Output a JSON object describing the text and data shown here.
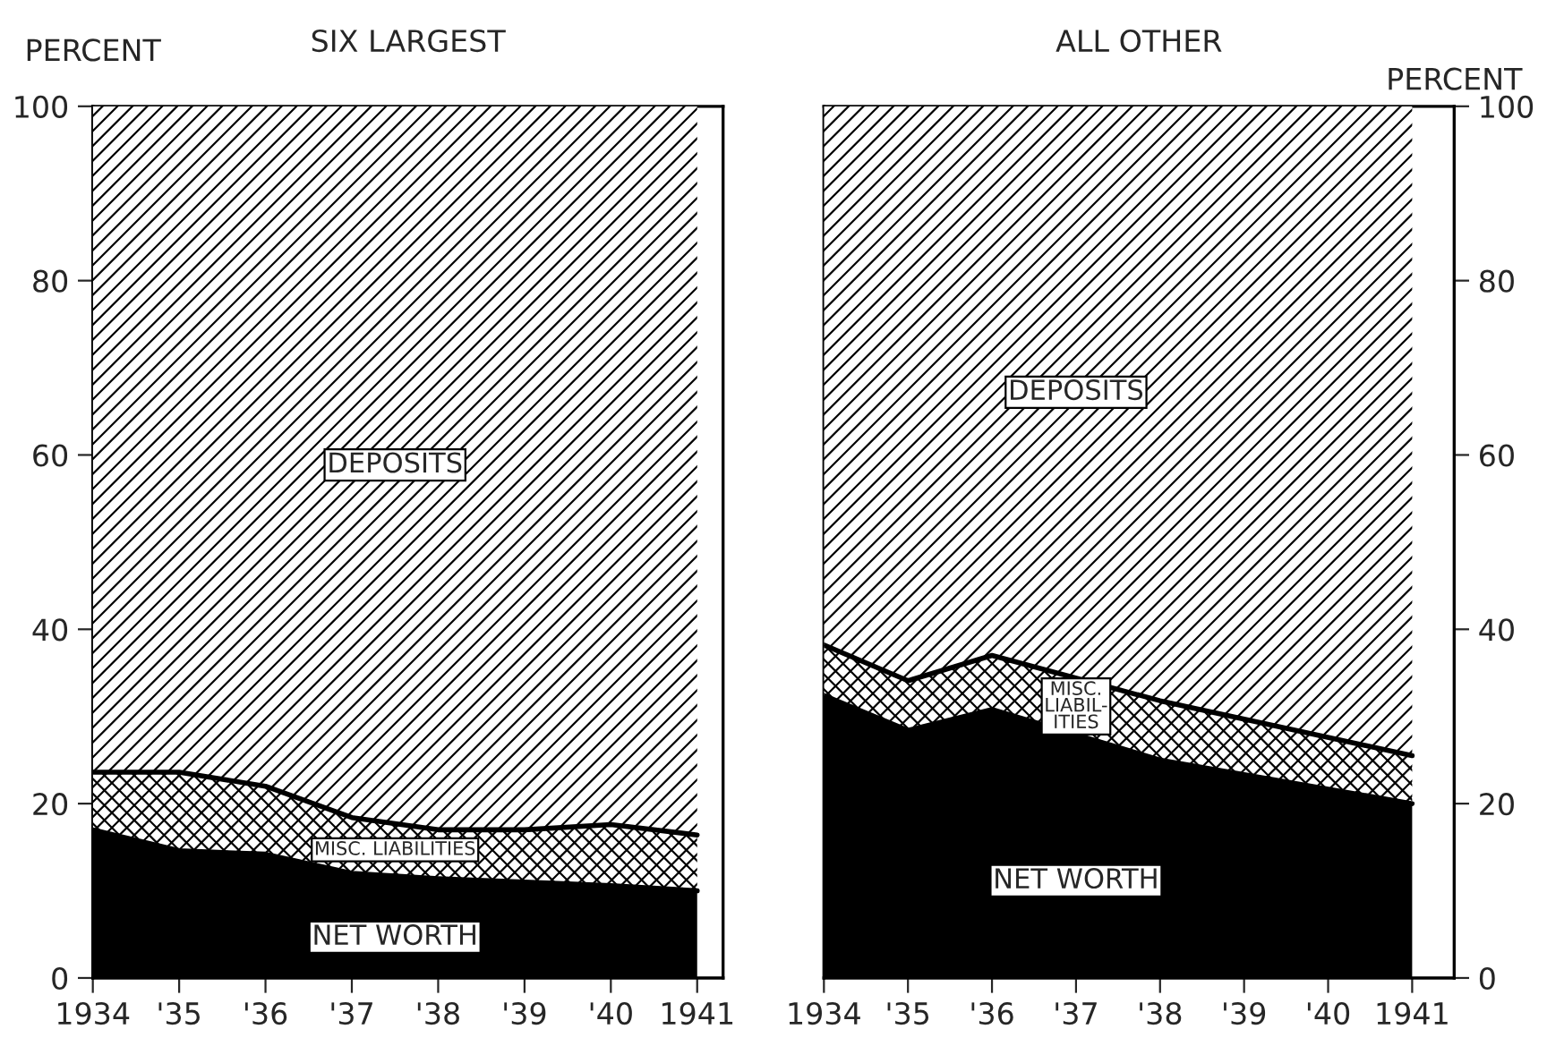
{
  "chart_data": [
    {
      "type": "area",
      "title": "SIX LARGEST",
      "ylabel": "PERCENT",
      "stacked": true,
      "legend": false,
      "grid": false,
      "x": [
        1934,
        1935,
        1936,
        1937,
        1938,
        1939,
        1940,
        1941
      ],
      "xlim": [
        1934,
        1941.3
      ],
      "xticks": [
        {
          "value": 1934,
          "label": "1934"
        },
        {
          "value": 1935,
          "label": "'35"
        },
        {
          "value": 1936,
          "label": "'36"
        },
        {
          "value": 1937,
          "label": "'37"
        },
        {
          "value": 1938,
          "label": "'38"
        },
        {
          "value": 1939,
          "label": "'39"
        },
        {
          "value": 1940,
          "label": "'40"
        },
        {
          "value": 1941,
          "label": "1941"
        }
      ],
      "ylim": [
        0,
        100
      ],
      "yticks": [
        0,
        20,
        40,
        60,
        80,
        100
      ],
      "series": [
        {
          "name": "NET WORTH",
          "color": "#000000",
          "values": [
            17,
            14.6,
            14.2,
            12,
            11.4,
            11,
            10.6,
            10
          ]
        },
        {
          "name": "MISC. LIABILITIES",
          "color": "#ffffff",
          "values": [
            6.6,
            9,
            7.8,
            6.4,
            5.6,
            6,
            7,
            6.4
          ]
        },
        {
          "name": "DEPOSITS",
          "color": "#ffffff",
          "values": [
            76.4,
            76.4,
            78,
            81.6,
            83,
            83,
            82.4,
            83.6
          ]
        }
      ]
    },
    {
      "type": "area",
      "title": "ALL OTHER",
      "y2label": "PERCENT",
      "stacked": true,
      "legend": false,
      "grid": false,
      "x": [
        1934,
        1935,
        1936,
        1938,
        1941
      ],
      "xlim": [
        1934,
        1941.5
      ],
      "xticks": [
        {
          "value": 1934,
          "label": "1934"
        },
        {
          "value": 1935,
          "label": "'35"
        },
        {
          "value": 1936,
          "label": "'36"
        },
        {
          "value": 1937,
          "label": "'37"
        },
        {
          "value": 1938,
          "label": "'38"
        },
        {
          "value": 1939,
          "label": "'39"
        },
        {
          "value": 1940,
          "label": "'40"
        },
        {
          "value": 1941,
          "label": "1941"
        }
      ],
      "y2lim": [
        0,
        100
      ],
      "y2ticks": [
        0,
        20,
        40,
        60,
        80,
        100
      ],
      "series": [
        {
          "name": "NET WORTH",
          "color": "#000000",
          "axis": "y2",
          "values": [
            32.4,
            28.4,
            30.8,
            25,
            20
          ]
        },
        {
          "name": "MISC.\nLIABIL-\nITIES",
          "color": "#ffffff",
          "axis": "y2",
          "values": [
            5.8,
            5.7,
            6.2,
            6.8,
            5.5
          ]
        },
        {
          "name": "DEPOSITS",
          "color": "#ffffff",
          "axis": "y2",
          "values": [
            61.8,
            65.9,
            63,
            68.2,
            74.5
          ]
        }
      ]
    }
  ]
}
